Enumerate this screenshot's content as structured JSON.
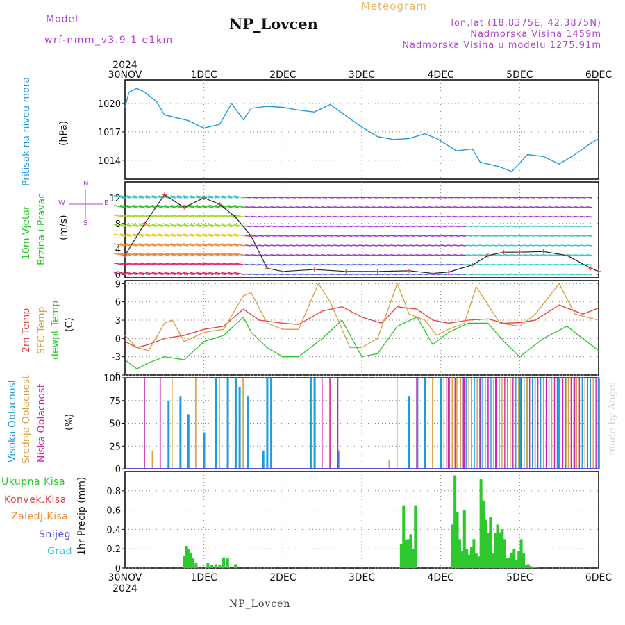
{
  "header": {
    "model_label": "Model",
    "model_name": "wrf-nmm_v3.9.1 e1km",
    "station": "NP_Lovcen",
    "kind": "Meteogram",
    "lonlat": "lon,lat (18.8375E, 42.3875N)",
    "elevation": "Nadmorska Visina 1459m",
    "elevation_model": "Nadmorska Visina u modelu 1275.91m"
  },
  "footer": "NP_Lovcen",
  "credit": "made by Angel",
  "colors": {
    "pressure": "#1e9be0",
    "t2m": "#e84040",
    "sfc": "#d8a040",
    "dew": "#28c828",
    "high": "#1e9be0",
    "mid": "#d8a040",
    "low": "#c828a8",
    "precip": "#2ec82e",
    "wind_label": "#b040d8"
  },
  "axes": {
    "year": "2024",
    "day_labels": [
      "30NOV",
      "1DEC",
      "2DEC",
      "3DEC",
      "4DEC",
      "5DEC",
      "6DEC"
    ]
  },
  "panels": {
    "pressure": {
      "title": "Pritisak na nivou mora",
      "unit": "(hPa)",
      "ticks": [
        "1020",
        "1017",
        "1014"
      ]
    },
    "wind": {
      "title1": "10m Vjetar",
      "title2": "Brzina i Pravac",
      "unit": "(m/s)",
      "ticks": [
        "12",
        "8",
        "4",
        "0"
      ],
      "compass_n": "N",
      "compass_s": "S",
      "compass_w": "W",
      "compass_e": "E"
    },
    "temp": {
      "title1": "2m Temp",
      "title2": "SFC Temp",
      "title3": "dewpt Temp",
      "unit": "(C)",
      "ticks": [
        "9",
        "6",
        "3",
        "0",
        "-3",
        "-6"
      ]
    },
    "cloud": {
      "title1": "Visoka Oblacnost",
      "title2": "Srednja Oblacnost",
      "title3": "Niska Oblacnost",
      "unit": "(%)",
      "ticks": [
        "100",
        "75",
        "50",
        "25",
        "0"
      ]
    },
    "precip": {
      "legend": [
        "Ukupna Kisa",
        "Konvek.Kisa",
        "Zaledj.Kisa",
        "Snijeg",
        "Grad"
      ],
      "legend_colors": [
        "#2ec82e",
        "#e84040",
        "#f08830",
        "#4848e0",
        "#30c8c8"
      ],
      "unit": "1hr Precip (mm)",
      "ticks": [
        "0.8",
        "0.6",
        "0.4",
        "0.2",
        "0"
      ]
    }
  },
  "chart_data": [
    {
      "type": "line",
      "title": "Pritisak na nivou mora",
      "ylabel": "(hPa)",
      "ylim": [
        1012,
        1022.5
      ],
      "x_unit": "days from 30NOV 00 UTC",
      "series": [
        {
          "name": "Pritisak na nivou mora",
          "x": [
            0,
            0.05,
            0.15,
            0.25,
            0.4,
            0.5,
            0.6,
            0.8,
            1.0,
            1.2,
            1.35,
            1.5,
            1.6,
            1.8,
            2.0,
            2.2,
            2.4,
            2.6,
            2.75,
            3.0,
            3.2,
            3.4,
            3.6,
            3.8,
            3.95,
            4.2,
            4.4,
            4.5,
            4.6,
            4.75,
            4.9,
            5.1,
            5.3,
            5.5,
            5.7,
            5.9,
            6.0
          ],
          "values": [
            1019.6,
            1021.2,
            1021.6,
            1021.2,
            1020.2,
            1018.8,
            1018.6,
            1018.2,
            1017.4,
            1017.8,
            1020.0,
            1018.3,
            1019.5,
            1019.7,
            1019.6,
            1019.3,
            1019.1,
            1019.9,
            1019.0,
            1017.5,
            1016.5,
            1016.2,
            1016.3,
            1016.8,
            1016.3,
            1015.0,
            1015.2,
            1013.8,
            1013.6,
            1013.3,
            1012.8,
            1014.6,
            1014.4,
            1013.6,
            1014.6,
            1015.8,
            1016.3
          ]
        }
      ]
    },
    {
      "type": "scatter",
      "title": "10m Vjetar Brzina i Pravac",
      "ylabel": "(m/s)",
      "ylim": [
        -0.5,
        14.5
      ],
      "x_unit": "days from 30NOV 00 UTC",
      "series": [
        {
          "name": "10m Vjetar",
          "x": [
            0,
            0.25,
            0.5,
            0.75,
            1.0,
            1.2,
            1.4,
            1.6,
            1.8,
            2.0,
            2.4,
            2.8,
            3.2,
            3.6,
            3.9,
            4.1,
            4.4,
            4.6,
            4.8,
            5.0,
            5.3,
            5.6,
            5.9,
            6.0
          ],
          "values": [
            3.0,
            8.0,
            12.5,
            10.5,
            12.0,
            11.0,
            9.0,
            6.0,
            1.0,
            0.5,
            0.8,
            0.5,
            0.5,
            0.6,
            0.2,
            0.4,
            1.5,
            3.0,
            3.5,
            3.5,
            3.6,
            3.0,
            1.0,
            0.5
          ]
        }
      ]
    },
    {
      "type": "line",
      "title": "Temperatura",
      "ylabel": "(C)",
      "ylim": [
        -6,
        9.5
      ],
      "x_unit": "days from 30NOV 00 UTC",
      "series": [
        {
          "name": "2m Temp",
          "x": [
            0,
            0.15,
            0.3,
            0.5,
            0.75,
            1.0,
            1.25,
            1.5,
            1.7,
            2.0,
            2.2,
            2.5,
            2.75,
            3.0,
            3.25,
            3.45,
            3.7,
            3.9,
            4.1,
            4.35,
            4.6,
            4.8,
            5.0,
            5.2,
            5.5,
            5.8,
            6.0
          ],
          "values": [
            -0.5,
            -1.5,
            -1.0,
            0.0,
            0.5,
            1.5,
            2.0,
            4.8,
            3.0,
            2.5,
            2.3,
            4.5,
            5.2,
            3.5,
            2.5,
            5.2,
            4.8,
            3.0,
            2.5,
            3.0,
            3.2,
            2.5,
            2.6,
            3.0,
            5.5,
            4.0,
            5.0
          ]
        },
        {
          "name": "SFC Temp",
          "x": [
            0,
            0.15,
            0.3,
            0.5,
            0.6,
            0.75,
            1.0,
            1.25,
            1.5,
            1.6,
            1.8,
            2.0,
            2.2,
            2.45,
            2.6,
            2.85,
            3.0,
            3.2,
            3.45,
            3.6,
            3.8,
            3.95,
            4.1,
            4.3,
            4.45,
            4.6,
            4.75,
            5.0,
            5.2,
            5.5,
            5.7,
            6.0
          ],
          "values": [
            0.5,
            -1.5,
            -2.0,
            2.5,
            3.0,
            -0.5,
            1.0,
            1.5,
            7.0,
            7.5,
            2.5,
            1.5,
            1.5,
            9.0,
            6.0,
            -1.5,
            -1.5,
            0.0,
            9.0,
            4.0,
            3.0,
            0.5,
            1.5,
            2.5,
            8.5,
            5.5,
            2.5,
            2.0,
            4.0,
            9.0,
            4.0,
            3.0
          ]
        },
        {
          "name": "dewpt Temp",
          "x": [
            0,
            0.15,
            0.3,
            0.5,
            0.75,
            1.0,
            1.25,
            1.5,
            1.6,
            1.8,
            2.0,
            2.2,
            2.5,
            2.75,
            3.0,
            3.2,
            3.45,
            3.7,
            3.9,
            4.1,
            4.35,
            4.6,
            4.8,
            5.0,
            5.3,
            5.6,
            6.0
          ],
          "values": [
            -3.5,
            -5.0,
            -4.0,
            -3.0,
            -3.5,
            -0.5,
            0.5,
            3.5,
            1.0,
            -1.5,
            -3.0,
            -3.0,
            0.0,
            3.0,
            -3.0,
            -2.5,
            2.0,
            3.5,
            -1.0,
            1.0,
            2.5,
            2.5,
            -0.5,
            -3.0,
            0.0,
            2.0,
            -2.0
          ]
        }
      ]
    },
    {
      "type": "bar",
      "title": "Oblacnost",
      "ylabel": "(%)",
      "ylim": [
        0,
        100
      ],
      "x_unit": "days from 30NOV 00 UTC",
      "series": [
        {
          "name": "Visoka Oblacnost",
          "x": [
            0.55,
            0.7,
            0.8,
            1.0,
            1.15,
            1.3,
            1.4,
            1.45,
            1.55,
            1.75,
            1.8,
            1.85,
            2.35,
            2.4,
            2.7,
            3.6,
            3.7,
            3.8,
            4.0,
            4.5,
            5.0,
            5.5,
            6.0
          ],
          "values": [
            75,
            80,
            60,
            40,
            100,
            100,
            100,
            90,
            80,
            20,
            100,
            100,
            100,
            100,
            20,
            80,
            100,
            100,
            100,
            100,
            100,
            100,
            100
          ]
        },
        {
          "name": "Srednja Oblacnost",
          "x": [
            0.35,
            0.45,
            0.6,
            0.9,
            1.2,
            1.5,
            3.35,
            3.45,
            3.9,
            4.2,
            4.6,
            5.1,
            5.6,
            5.9
          ],
          "values": [
            20,
            100,
            100,
            100,
            100,
            100,
            10,
            100,
            100,
            100,
            100,
            100,
            100,
            100
          ]
        },
        {
          "name": "Niska Oblacnost",
          "x": [
            0.25,
            0.45,
            2.5,
            2.6,
            2.7,
            3.7,
            4.1,
            4.3,
            4.7,
            5.2,
            5.7
          ],
          "values": [
            100,
            100,
            100,
            100,
            100,
            100,
            100,
            100,
            100,
            100,
            100
          ]
        }
      ]
    },
    {
      "type": "bar",
      "title": "1hr Precip",
      "ylabel": "1hr Precip (mm)",
      "ylim": [
        0,
        1.0
      ],
      "x_unit": "days from 30NOV 00 UTC",
      "series": [
        {
          "name": "Ukupna Kisa",
          "x": [
            0.75,
            0.78,
            0.8,
            0.83,
            0.86,
            0.9,
            1.05,
            1.1,
            1.15,
            1.2,
            1.25,
            1.3,
            1.4,
            3.5,
            3.53,
            3.56,
            3.59,
            3.62,
            3.65,
            3.68,
            4.15,
            4.18,
            4.21,
            4.24,
            4.27,
            4.3,
            4.33,
            4.36,
            4.39,
            4.42,
            4.45,
            4.48,
            4.51,
            4.54,
            4.57,
            4.6,
            4.63,
            4.66,
            4.69,
            4.72,
            4.75,
            4.78,
            4.81,
            4.84,
            4.87,
            4.9,
            4.93,
            4.96,
            4.99,
            5.02,
            5.05,
            5.08,
            5.11,
            5.14,
            5.17,
            5.2
          ],
          "values": [
            0.13,
            0.23,
            0.2,
            0.16,
            0.1,
            0.05,
            0.05,
            0.03,
            0.04,
            0.03,
            0.11,
            0.1,
            0.04,
            0.25,
            0.65,
            0.29,
            0.3,
            0.35,
            0.2,
            0.65,
            0.45,
            0.96,
            0.58,
            0.3,
            0.18,
            0.6,
            0.2,
            0.14,
            0.22,
            0.3,
            0.15,
            0.12,
            0.92,
            0.7,
            0.5,
            0.36,
            0.53,
            0.15,
            0.36,
            0.45,
            0.37,
            0.4,
            0.3,
            0.1,
            0.11,
            0.16,
            0.2,
            0.08,
            0.18,
            0.3,
            0.15,
            0.03,
            0.04,
            0.02,
            0.01,
            0.01
          ]
        }
      ]
    }
  ]
}
